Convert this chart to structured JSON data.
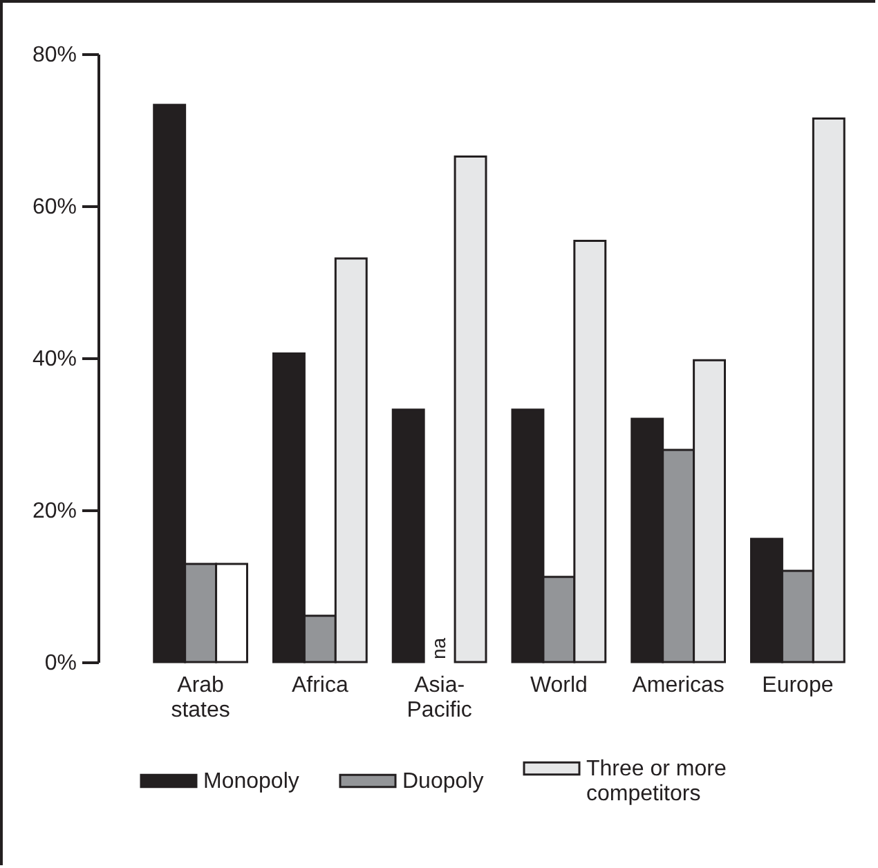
{
  "chart_data": {
    "type": "bar",
    "categories": [
      "Arab states",
      "Africa",
      "Asia-Pacific",
      "World",
      "Americas",
      "Europe"
    ],
    "series": [
      {
        "name": "Monopoly",
        "color": "#231f20",
        "values": [
          73.3,
          40.6,
          33.2,
          33.2,
          32.0,
          16.2
        ]
      },
      {
        "name": "Duopoly",
        "color": "#939598",
        "values": [
          12.9,
          6.1,
          null,
          11.2,
          27.9,
          12.0
        ]
      },
      {
        "name": "Three or more competitors",
        "color": "#e6e7e8",
        "colors": [
          "#ffffff",
          "#e6e7e8",
          "#e6e7e8",
          "#e6e7e8",
          "#e6e7e8",
          "#e6e7e8"
        ],
        "values": [
          12.9,
          53.1,
          66.5,
          55.4,
          39.7,
          71.5
        ]
      }
    ],
    "ylim": [
      0,
      80
    ],
    "yticks": [
      {
        "value": 0,
        "label": "0%"
      },
      {
        "value": 20,
        "label": "20%"
      },
      {
        "value": 40,
        "label": "40%"
      },
      {
        "value": 60,
        "label": "60%"
      },
      {
        "value": 80,
        "label": "80%"
      }
    ],
    "annotations": [
      "na"
    ],
    "grid": false,
    "legend": "bottom"
  }
}
